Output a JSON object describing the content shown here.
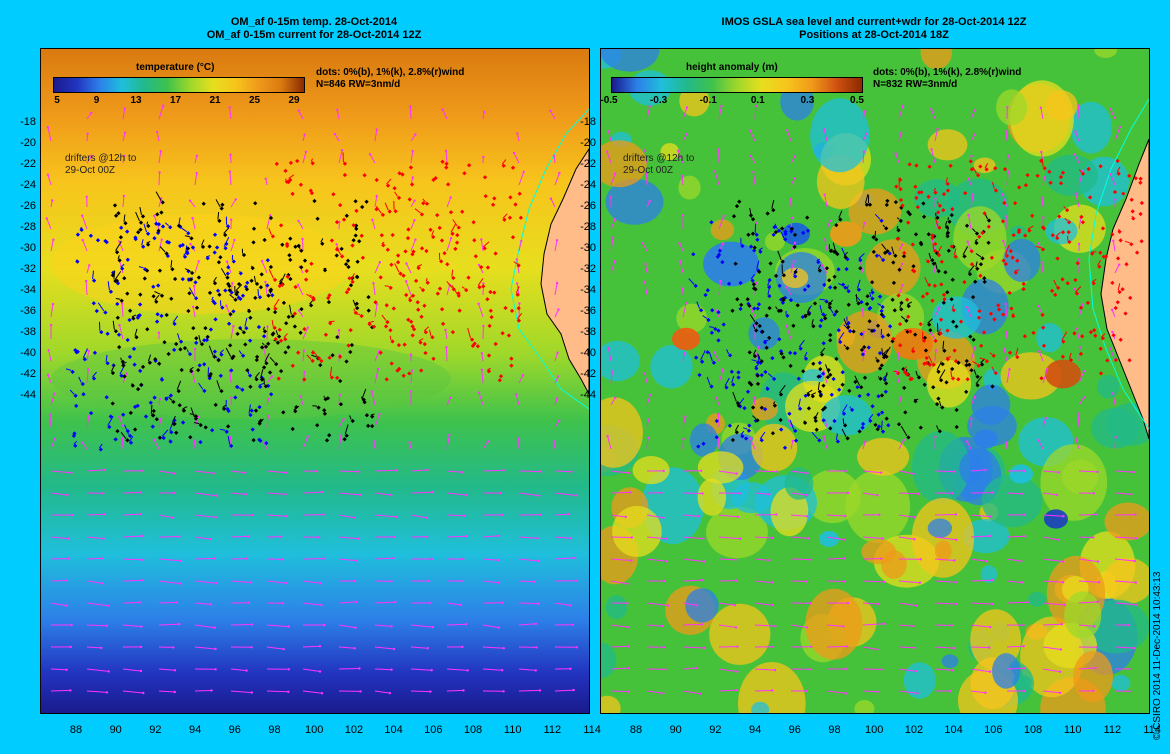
{
  "left": {
    "title_line1": "OM_af 0-15m temp. 28-Oct-2014",
    "title_line2": "OM_af 0-15m current for 28-Oct-2014 12Z",
    "colorbar_title": "temperature (°C)",
    "colorbar_ticks": [
      "5",
      "9",
      "13",
      "17",
      "21",
      "25",
      "29"
    ],
    "legend_line1": "dots: 0%(b), 1%(k), 2.8%(r)wind",
    "legend_line2": "N=846 RW=3nm/d",
    "note_line1": "drifters @12h to",
    "note_line2": "29-Oct 00Z"
  },
  "right": {
    "title_line1": "IMOS GSLA sea level and current+wdr for 28-Oct-2014 12Z",
    "title_line2": "Positions at 28-Oct-2014 18Z",
    "colorbar_title": "height anomaly (m)",
    "colorbar_ticks": [
      "-0.5",
      "-0.3",
      "-0.1",
      "0.1",
      "0.3",
      "0.5"
    ],
    "legend_line1": "dots: 0%(b), 1%(k), 2.8%(r)wind",
    "legend_line2": "N=832 RW=3nm/d",
    "note_line1": "drifters @12h to",
    "note_line2": "29-Oct 00Z"
  },
  "axes": {
    "lat_ticks": [
      "-18",
      "-20",
      "-22",
      "-24",
      "-26",
      "-28",
      "-30",
      "-32",
      "-34",
      "-36",
      "-38",
      "-40",
      "-42",
      "-44"
    ],
    "lon_ticks": [
      "88",
      "90",
      "92",
      "94",
      "96",
      "98",
      "100",
      "102",
      "104",
      "106",
      "108",
      "110",
      "112",
      "114"
    ]
  },
  "copyright": "© CSIRO 2014   11-Dec-2014 10:43:13",
  "colors": {
    "background": "#00ccff",
    "land": "#ffbb88",
    "coast": "#00ffdd",
    "vector": "#ff33ff",
    "drifter_blue": "#0000ff",
    "drifter_black": "#000000",
    "drifter_red": "#ff0000"
  }
}
